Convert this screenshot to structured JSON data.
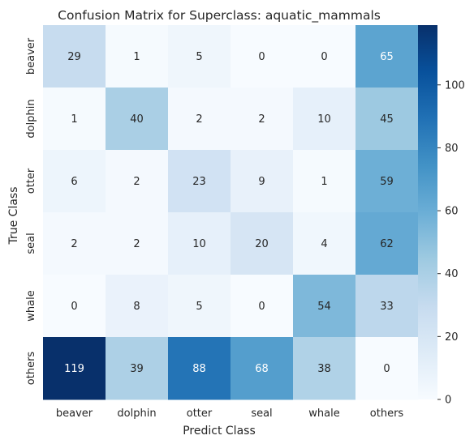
{
  "chart_data": {
    "type": "heatmap",
    "title": "Confusion Matrix for Superclass: aquatic_mammals",
    "xlabel": "Predict Class",
    "ylabel": "True Class",
    "x_categories": [
      "beaver",
      "dolphin",
      "otter",
      "seal",
      "whale",
      "others"
    ],
    "y_categories": [
      "beaver",
      "dolphin",
      "otter",
      "seal",
      "whale",
      "others"
    ],
    "values": [
      [
        29,
        1,
        5,
        0,
        0,
        65
      ],
      [
        1,
        40,
        2,
        2,
        10,
        45
      ],
      [
        6,
        2,
        23,
        9,
        1,
        59
      ],
      [
        2,
        2,
        10,
        20,
        4,
        62
      ],
      [
        0,
        8,
        5,
        0,
        54,
        33
      ],
      [
        119,
        39,
        88,
        68,
        38,
        0
      ]
    ],
    "colorbar": {
      "min": 0,
      "max": 119,
      "ticks": [
        0,
        20,
        40,
        60,
        80,
        100
      ],
      "colormap": "Blues"
    },
    "grid": false,
    "legend": "colorbar-right"
  }
}
